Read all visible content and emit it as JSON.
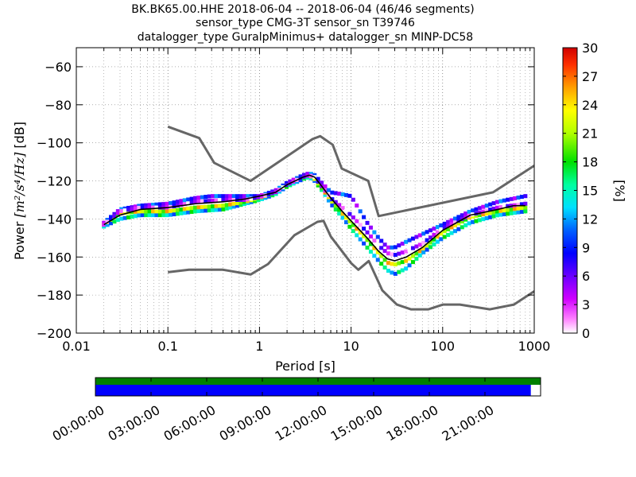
{
  "title_lines": [
    "BK.BK65.00.HHE   2018-06-04 -- 2018-06-04  (46/46 segments)",
    "sensor_type CMG-3T sensor_sn T39746",
    "datalogger_type GuralpMinimus+ datalogger_sn MINP-DC58"
  ],
  "chart_data": [
    {
      "type": "heatmap",
      "xlabel": "Period [s]",
      "ylabel_prefix": "Power ",
      "ylabel_math": "[m²/s⁴/Hz]",
      "ylabel_suffix": " [dB]",
      "x_scale": "log",
      "xlim": [
        0.01,
        1000
      ],
      "ylim": [
        -200,
        -50
      ],
      "x_ticks": [
        0.01,
        0.1,
        1,
        10,
        100,
        1000
      ],
      "x_tick_labels": [
        "0.01",
        "0.1",
        "1",
        "10",
        "100",
        "1000"
      ],
      "y_ticks": [
        -200,
        -180,
        -160,
        -140,
        -120,
        -100,
        -80,
        -60
      ],
      "y_tick_labels": [
        "−200",
        "−180",
        "−160",
        "−140",
        "−120",
        "−100",
        "−80",
        "−60"
      ],
      "grid": "dotted",
      "colorbar": {
        "label": "[%]",
        "min": 0,
        "max": 30,
        "ticks": [
          0,
          3,
          6,
          9,
          12,
          15,
          18,
          21,
          24,
          27,
          30
        ],
        "tick_labels": [
          "0",
          "3",
          "6",
          "9",
          "12",
          "15",
          "18",
          "21",
          "24",
          "27",
          "30"
        ]
      },
      "reference_curves": [
        {
          "name": "upper",
          "color": "#666666",
          "points": [
            [
              0.1,
              -91.5
            ],
            [
              0.22,
              -97.5
            ],
            [
              0.32,
              -110.5
            ],
            [
              0.8,
              -120
            ],
            [
              3.8,
              -98
            ],
            [
              4.6,
              -96.5
            ],
            [
              6.3,
              -101
            ],
            [
              7.9,
              -113.5
            ],
            [
              15.4,
              -120
            ],
            [
              20,
              -138.5
            ],
            [
              354.8,
              -126
            ],
            [
              1000,
              -112
            ]
          ]
        },
        {
          "name": "lower",
          "color": "#666666",
          "points": [
            [
              0.1,
              -168
            ],
            [
              0.17,
              -166.7
            ],
            [
              0.4,
              -166.7
            ],
            [
              0.8,
              -169.2
            ],
            [
              1.24,
              -163.7
            ],
            [
              2.4,
              -148.6
            ],
            [
              4.3,
              -141.5
            ],
            [
              5,
              -141
            ],
            [
              6,
              -149.2
            ],
            [
              10,
              -163.2
            ],
            [
              12,
              -166.7
            ],
            [
              15.6,
              -162.1
            ],
            [
              21.9,
              -177.5
            ],
            [
              31.6,
              -185
            ],
            [
              45,
              -187.5
            ],
            [
              70,
              -187.5
            ],
            [
              101,
              -185
            ],
            [
              154,
              -185
            ],
            [
              328,
              -187.5
            ],
            [
              600,
              -185
            ],
            [
              1000,
              -178
            ]
          ]
        }
      ],
      "mode_curve": {
        "color": "#000000",
        "points": [
          [
            0.02,
            -143
          ],
          [
            0.03,
            -138
          ],
          [
            0.05,
            -135
          ],
          [
            0.1,
            -134
          ],
          [
            0.2,
            -132
          ],
          [
            0.4,
            -131
          ],
          [
            0.7,
            -129.5
          ],
          [
            1,
            -128
          ],
          [
            1.5,
            -126
          ],
          [
            2,
            -122
          ],
          [
            3,
            -118
          ],
          [
            3.5,
            -117
          ],
          [
            4,
            -118
          ],
          [
            5,
            -124
          ],
          [
            6,
            -129
          ],
          [
            8,
            -136
          ],
          [
            10,
            -141
          ],
          [
            15,
            -150
          ],
          [
            20,
            -157
          ],
          [
            25,
            -161
          ],
          [
            30,
            -162
          ],
          [
            40,
            -160
          ],
          [
            60,
            -155
          ],
          [
            100,
            -146
          ],
          [
            200,
            -138
          ],
          [
            400,
            -135
          ],
          [
            600,
            -133
          ],
          [
            800,
            -133
          ]
        ]
      },
      "density_bands": [
        {
          "points": [
            [
              0.02,
              -142
            ],
            [
              0.03,
              -135
            ],
            [
              0.05,
              -133
            ],
            [
              0.1,
              -132
            ],
            [
              0.2,
              -129
            ],
            [
              0.3,
              -128
            ],
            [
              0.5,
              -128
            ],
            [
              1,
              -128
            ],
            [
              1.5,
              -125
            ],
            [
              2,
              -121
            ],
            [
              3,
              -117
            ],
            [
              3.5,
              -116
            ],
            [
              4,
              -117
            ],
            [
              5,
              -122
            ],
            [
              6,
              -126
            ],
            [
              8,
              -127
            ],
            [
              10,
              -128
            ],
            [
              15,
              -142
            ],
            [
              20,
              -150
            ],
            [
              25,
              -155
            ],
            [
              30,
              -155
            ],
            [
              40,
              -152
            ],
            [
              60,
              -148
            ],
            [
              100,
              -143
            ],
            [
              200,
              -136
            ],
            [
              400,
              -131
            ],
            [
              800,
              -128
            ]
          ],
          "percent": 8
        },
        {
          "points": [
            [
              0.02,
              -144
            ],
            [
              0.03,
              -140
            ],
            [
              0.05,
              -138
            ],
            [
              0.1,
              -138
            ],
            [
              0.2,
              -136
            ],
            [
              0.4,
              -135
            ],
            [
              0.7,
              -132
            ],
            [
              1,
              -130
            ],
            [
              1.5,
              -127
            ],
            [
              2,
              -123
            ],
            [
              3,
              -119
            ],
            [
              3.5,
              -118
            ],
            [
              4,
              -120
            ],
            [
              5,
              -126
            ],
            [
              6,
              -132
            ],
            [
              8,
              -139
            ],
            [
              10,
              -145
            ],
            [
              15,
              -155
            ],
            [
              20,
              -162
            ],
            [
              25,
              -167
            ],
            [
              30,
              -169
            ],
            [
              40,
              -166
            ],
            [
              60,
              -158
            ],
            [
              100,
              -150
            ],
            [
              200,
              -142
            ],
            [
              400,
              -138
            ],
            [
              800,
              -136
            ]
          ],
          "percent": 14
        },
        {
          "points": [
            [
              0.02,
              -143
            ],
            [
              0.03,
              -137
            ],
            [
              0.05,
              -136
            ],
            [
              0.1,
              -136
            ],
            [
              0.2,
              -134
            ],
            [
              0.4,
              -133
            ],
            [
              0.7,
              -131
            ],
            [
              1,
              -129
            ],
            [
              1.5,
              -126
            ],
            [
              2,
              -122
            ],
            [
              3,
              -118
            ],
            [
              3.5,
              -117
            ],
            [
              4,
              -119
            ],
            [
              5,
              -125
            ],
            [
              6,
              -130
            ],
            [
              8,
              -137
            ],
            [
              10,
              -142
            ],
            [
              15,
              -151
            ],
            [
              20,
              -158
            ],
            [
              25,
              -163
            ],
            [
              30,
              -164
            ],
            [
              40,
              -162
            ],
            [
              60,
              -156
            ],
            [
              100,
              -147
            ],
            [
              200,
              -139
            ],
            [
              400,
              -136
            ],
            [
              800,
              -134
            ]
          ],
          "percent": 22
        },
        {
          "points": [
            [
              0.02,
              -143
            ],
            [
              0.03,
              -136
            ],
            [
              0.05,
              -134
            ],
            [
              0.1,
              -134
            ],
            [
              0.2,
              -131
            ],
            [
              0.4,
              -130
            ],
            [
              0.7,
              -130
            ],
            [
              1,
              -128.5
            ],
            [
              1.5,
              -126
            ],
            [
              2,
              -122
            ],
            [
              3,
              -118
            ],
            [
              3.5,
              -117
            ],
            [
              4,
              -118
            ],
            [
              5,
              -124
            ],
            [
              6,
              -129
            ],
            [
              8,
              -134
            ],
            [
              10,
              -138
            ],
            [
              15,
              -147
            ],
            [
              20,
              -154
            ],
            [
              25,
              -158
            ],
            [
              30,
              -159
            ],
            [
              40,
              -157
            ],
            [
              60,
              -153
            ],
            [
              100,
              -145
            ],
            [
              200,
              -138
            ],
            [
              400,
              -134
            ],
            [
              800,
              -132
            ]
          ],
          "percent": 4
        }
      ]
    },
    {
      "type": "timeline",
      "x_tick_labels": [
        "00:00:00",
        "03:00:00",
        "06:00:00",
        "09:00:00",
        "12:00:00",
        "15:00:00",
        "18:00:00",
        "21:00:00"
      ],
      "tracks": [
        {
          "color": "#008000",
          "coverage": [
            [
              0,
              1
            ]
          ]
        },
        {
          "color": "#0000ff",
          "coverage": [
            [
              0,
              0.978
            ]
          ]
        }
      ]
    }
  ]
}
